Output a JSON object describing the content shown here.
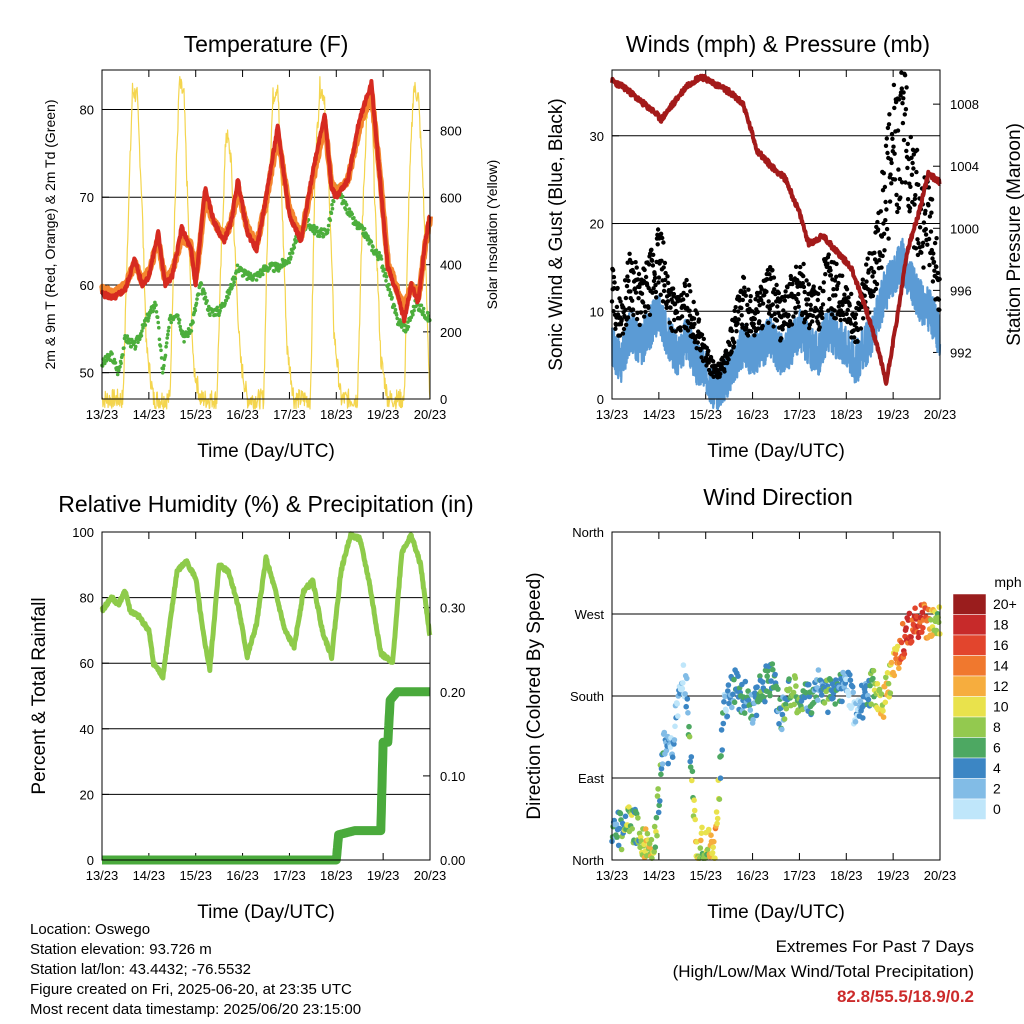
{
  "chart_data": [
    {
      "type": "line",
      "title": "Temperature (F)",
      "xlabel": "Time (Day/UTC)",
      "ylabel": "2m & 9m T (Red, Orange) & 2m Td (Green)",
      "ylabel_right": "Solar Insolation (Yellow)",
      "x_ticks": [
        "13/23",
        "14/23",
        "15/23",
        "16/23",
        "17/23",
        "18/23",
        "19/23",
        "20/23"
      ],
      "y_ticks": [
        "50",
        "60",
        "70",
        "80"
      ],
      "y_ticks_right": [
        "0",
        "200",
        "400",
        "600",
        "800"
      ],
      "ylim": [
        47,
        84.5
      ],
      "ylim_right": [
        0,
        980
      ],
      "xlim": [
        0,
        7
      ],
      "grid": "horizontal",
      "colors": {
        "t2m": "#d62a20",
        "t9m": "#f4852e",
        "td": "#4cae3c",
        "solar": "#f4d54e"
      },
      "series": [
        {
          "key": "t2m",
          "x": [
            0,
            0.25,
            0.5,
            0.7,
            0.85,
            1.0,
            1.2,
            1.35,
            1.5,
            1.7,
            1.9,
            2.0,
            2.2,
            2.4,
            2.6,
            2.75,
            2.9,
            3.1,
            3.3,
            3.5,
            3.75,
            4.0,
            4.25,
            4.5,
            4.75,
            4.9,
            5.0,
            5.25,
            5.5,
            5.75,
            5.95,
            6.1,
            6.3,
            6.45,
            6.6,
            6.75,
            6.9,
            7.0
          ],
          "values": [
            59,
            58.5,
            59.5,
            63,
            60,
            61,
            66,
            60,
            61,
            66.5,
            64,
            60,
            71,
            67,
            65,
            67,
            72,
            66,
            64,
            70,
            78,
            68,
            65,
            73,
            79.5,
            71,
            70,
            72,
            79,
            83,
            71,
            62,
            59,
            56,
            60,
            58,
            65,
            68
          ]
        },
        {
          "key": "t9m",
          "x": [
            0,
            0.25,
            0.5,
            0.7,
            0.85,
            1.0,
            1.2,
            1.35,
            1.5,
            1.7,
            1.9,
            2.0,
            2.2,
            2.4,
            2.6,
            2.75,
            2.9,
            3.1,
            3.3,
            3.5,
            3.75,
            4.0,
            4.25,
            4.5,
            4.75,
            4.9,
            5.0,
            5.25,
            5.5,
            5.75,
            5.95,
            6.1,
            6.3,
            6.45,
            6.6,
            6.75,
            6.9,
            7.0
          ],
          "values": [
            59.5,
            59,
            60,
            62.5,
            60.5,
            61.5,
            65,
            60.5,
            61.5,
            65.5,
            64.5,
            60.5,
            70,
            67,
            65.5,
            67,
            71,
            66.5,
            64.5,
            69.5,
            77,
            68.5,
            65.5,
            72,
            78.5,
            71.5,
            70.5,
            72,
            78,
            82,
            71.5,
            62.5,
            59.5,
            57,
            60,
            58.5,
            64.5,
            67.5
          ]
        },
        {
          "key": "td",
          "x": [
            0,
            0.2,
            0.35,
            0.5,
            0.7,
            0.95,
            1.15,
            1.3,
            1.45,
            1.6,
            1.75,
            1.9,
            2.1,
            2.3,
            2.5,
            2.7,
            2.9,
            3.1,
            3.3,
            3.5,
            3.75,
            4.0,
            4.2,
            4.4,
            4.6,
            4.8,
            5.0,
            5.2,
            5.4,
            5.6,
            5.8,
            5.95,
            6.1,
            6.3,
            6.5,
            6.7,
            6.85,
            7.0
          ],
          "values": [
            51,
            52,
            50,
            54,
            53,
            56,
            58,
            50,
            56,
            57,
            54,
            55,
            60,
            57,
            57,
            59,
            62,
            61,
            61,
            62,
            62,
            63,
            66,
            67,
            66,
            66,
            71,
            69,
            67,
            66,
            64,
            63,
            60,
            56,
            55,
            58,
            57,
            56
          ]
        },
        {
          "key": "solar",
          "x": [
            0,
            0.45,
            0.55,
            0.65,
            0.75,
            0.85,
            0.95,
            1.1,
            1.45,
            1.55,
            1.65,
            1.75,
            1.85,
            1.95,
            2.1,
            2.45,
            2.55,
            2.65,
            2.75,
            2.85,
            2.95,
            3.1,
            3.45,
            3.55,
            3.65,
            3.75,
            3.85,
            3.95,
            4.1,
            4.45,
            4.55,
            4.65,
            4.75,
            4.85,
            4.95,
            5.1,
            5.45,
            5.55,
            5.65,
            5.75,
            5.85,
            5.95,
            6.1,
            6.45,
            6.55,
            6.65,
            6.75,
            6.85,
            6.95,
            7.0
          ],
          "values": [
            0,
            0,
            500,
            920,
            900,
            600,
            150,
            0,
            0,
            550,
            940,
            900,
            500,
            100,
            0,
            0,
            450,
            800,
            720,
            400,
            120,
            0,
            0,
            600,
            900,
            940,
            550,
            150,
            0,
            0,
            700,
            930,
            900,
            620,
            200,
            0,
            0,
            500,
            850,
            900,
            480,
            120,
            0,
            0,
            600,
            930,
            900,
            650,
            200,
            0
          ]
        }
      ]
    },
    {
      "type": "scatter",
      "title": "Winds (mph) & Pressure (mb)",
      "xlabel": "Time (Day/UTC)",
      "ylabel": "Sonic Wind & Gust (Blue, Black)",
      "ylabel_right": "Station Pressure (Maroon)",
      "x_ticks": [
        "13/23",
        "14/23",
        "15/23",
        "16/23",
        "17/23",
        "18/23",
        "19/23",
        "20/23"
      ],
      "y_ticks": [
        "0",
        "10",
        "20",
        "30"
      ],
      "y_ticks_right": [
        "992",
        "996",
        "1000",
        "1004",
        "1008"
      ],
      "ylim": [
        0,
        37.5
      ],
      "ylim_right": [
        989,
        1010.2
      ],
      "xlim": [
        0,
        7
      ],
      "grid": "horizontal",
      "colors": {
        "wind": "#5b9bd5",
        "gust": "#000000",
        "pressure": "#a31a1a"
      },
      "series": [
        {
          "key": "wind",
          "x": [
            0,
            0.2,
            0.4,
            0.6,
            0.8,
            1.0,
            1.2,
            1.4,
            1.6,
            1.8,
            2.0,
            2.2,
            2.4,
            2.6,
            2.8,
            3.0,
            3.2,
            3.4,
            3.6,
            3.8,
            4.0,
            4.2,
            4.4,
            4.6,
            4.8,
            5.0,
            5.2,
            5.4,
            5.6,
            5.8,
            6.0,
            6.2,
            6.4,
            6.6,
            6.8,
            7.0
          ],
          "values": [
            6,
            4,
            8,
            6,
            8,
            10,
            7,
            5,
            7,
            4,
            3,
            1,
            2,
            4,
            6,
            5,
            6,
            7,
            5,
            6,
            8,
            6,
            5,
            8,
            7,
            6,
            4,
            6,
            8,
            12,
            14,
            16,
            13,
            11,
            10,
            7
          ]
        },
        {
          "key": "gust",
          "x": [
            0,
            0.2,
            0.4,
            0.6,
            0.8,
            1.0,
            1.2,
            1.4,
            1.6,
            1.8,
            2.0,
            2.2,
            2.4,
            2.6,
            2.8,
            3.0,
            3.2,
            3.4,
            3.6,
            3.8,
            4.0,
            4.2,
            4.4,
            4.6,
            4.8,
            5.0,
            5.2,
            5.4,
            5.6,
            5.8,
            6.0,
            6.2,
            6.4,
            6.6,
            6.8,
            7.0
          ],
          "values": [
            12,
            9,
            14,
            11,
            13,
            16,
            12,
            9,
            11,
            8,
            5,
            3,
            4,
            8,
            11,
            9,
            11,
            12,
            9,
            11,
            13,
            11,
            10,
            14,
            12,
            11,
            8,
            12,
            15,
            22,
            28,
            31,
            24,
            21,
            19,
            12
          ]
        },
        {
          "key": "pressure",
          "x": [
            0,
            0.3,
            0.6,
            0.9,
            1.05,
            1.3,
            1.6,
            1.9,
            2.2,
            2.5,
            2.8,
            3.1,
            3.4,
            3.7,
            4.0,
            4.2,
            4.5,
            4.8,
            5.1,
            5.4,
            5.7,
            5.85,
            6.1,
            6.3,
            6.55,
            6.75,
            7.0
          ],
          "values": [
            1009.5,
            1009.0,
            1008.2,
            1007.5,
            1007.0,
            1008.0,
            1009.2,
            1009.8,
            1009.3,
            1008.8,
            1008.0,
            1005.0,
            1004.0,
            1003.2,
            1001.0,
            999.0,
            999.5,
            998.5,
            997.5,
            995.0,
            992.0,
            990.0,
            994.5,
            998.5,
            1001.0,
            1003.5,
            1003.0
          ]
        }
      ]
    },
    {
      "type": "line",
      "title": "Relative Humidity (%) & Precipitation (in)",
      "xlabel": "Time (Day/UTC)",
      "ylabel": "Percent & Total Rainfall",
      "x_ticks": [
        "13/23",
        "14/23",
        "15/23",
        "16/23",
        "17/23",
        "18/23",
        "19/23",
        "20/23"
      ],
      "y_ticks": [
        "0",
        "20",
        "40",
        "60",
        "80",
        "100"
      ],
      "y_ticks_right": [
        "0.00",
        "0.10",
        "0.20",
        "0.30"
      ],
      "ylim": [
        0,
        100
      ],
      "ylim_right": [
        0,
        0.39
      ],
      "xlim": [
        0,
        7
      ],
      "grid": "horizontal",
      "colors": {
        "rh": "#8ecb4a",
        "precip": "#4aaa3c"
      },
      "series": [
        {
          "key": "rh",
          "x": [
            0,
            0.1,
            0.2,
            0.35,
            0.5,
            0.6,
            0.8,
            1.0,
            1.1,
            1.3,
            1.6,
            1.8,
            2.0,
            2.15,
            2.3,
            2.5,
            2.7,
            2.9,
            3.1,
            3.3,
            3.5,
            3.7,
            3.9,
            4.1,
            4.3,
            4.5,
            4.7,
            4.9,
            5.1,
            5.3,
            5.5,
            5.7,
            5.95,
            6.2,
            6.4,
            6.6,
            6.8,
            7.0
          ],
          "values": [
            76,
            78,
            80,
            78,
            82,
            76,
            74,
            70,
            60,
            56,
            88,
            91,
            86,
            70,
            58,
            90,
            88,
            78,
            62,
            72,
            92,
            82,
            70,
            65,
            82,
            85,
            70,
            62,
            88,
            99,
            98,
            85,
            63,
            60,
            94,
            99,
            90,
            68
          ]
        },
        {
          "key": "precip",
          "x": [
            0,
            5.0,
            5.05,
            5.4,
            5.95,
            6.0,
            6.1,
            6.15,
            6.3,
            7.0
          ],
          "values": [
            0,
            0,
            0.03,
            0.035,
            0.035,
            0.14,
            0.14,
            0.19,
            0.2,
            0.2
          ]
        }
      ]
    },
    {
      "type": "scatter",
      "title": "Wind Direction",
      "xlabel": "Time (Day/UTC)",
      "ylabel": "Direction (Colored By Speed)",
      "x_ticks": [
        "13/23",
        "14/23",
        "15/23",
        "16/23",
        "17/23",
        "18/23",
        "19/23",
        "20/23"
      ],
      "y_ticks": [
        "North",
        "East",
        "South",
        "West",
        "North"
      ],
      "ylim": [
        0,
        360
      ],
      "xlim": [
        0,
        7
      ],
      "grid": "horizontal",
      "colorbar": {
        "unit": "mph",
        "labels": [
          "20+",
          "18",
          "16",
          "14",
          "12",
          "10",
          "8",
          "6",
          "4",
          "2",
          "0"
        ],
        "colors": [
          "#9a1d1d",
          "#c72a2a",
          "#e2452d",
          "#f0782e",
          "#f6ad3e",
          "#e9e24c",
          "#93c94f",
          "#4da862",
          "#3c86c4",
          "#82bce6",
          "#bfe6fa"
        ]
      },
      "series": [
        {
          "key": "direction",
          "x": [
            0.05,
            0.2,
            0.35,
            0.5,
            0.7,
            0.9,
            1.1,
            1.3,
            1.5,
            1.6,
            1.8,
            2.0,
            2.2,
            2.4,
            2.6,
            2.8,
            3.0,
            3.2,
            3.4,
            3.6,
            3.8,
            4.0,
            4.2,
            4.4,
            4.6,
            4.8,
            5.0,
            5.2,
            5.4,
            5.6,
            5.8,
            6.0,
            6.2,
            6.4,
            6.6,
            6.8,
            6.95
          ],
          "values": [
            40,
            30,
            45,
            35,
            20,
            15,
            120,
            130,
            200,
            180,
            10,
            20,
            15,
            170,
            190,
            180,
            170,
            190,
            200,
            160,
            185,
            180,
            175,
            190,
            180,
            185,
            200,
            160,
            180,
            190,
            175,
            215,
            240,
            260,
            265,
            255,
            260
          ],
          "speeds": [
            5,
            7,
            9,
            6,
            11,
            10,
            4,
            3,
            2,
            4,
            11,
            9,
            12,
            3,
            5,
            6,
            4,
            7,
            6,
            5,
            8,
            7,
            6,
            5,
            7,
            6,
            3,
            2,
            4,
            9,
            11,
            12,
            16,
            18,
            17,
            12,
            10
          ]
        }
      ]
    }
  ],
  "info": {
    "location": "Location: Oswego",
    "elevation": "Station elevation: 93.726 m",
    "latlon": "Station lat/lon: 43.4432; -76.5532",
    "created": "Figure created on Fri, 2025-06-20, at 23:35 UTC",
    "recent": "Most recent data timestamp: 2025/06/20 23:15:00"
  },
  "extremes": {
    "title": "Extremes For Past 7 Days",
    "subtitle": "(High/Low/Max Wind/Total Precipitation)",
    "values": "82.8/55.5/18.9/0.2"
  }
}
